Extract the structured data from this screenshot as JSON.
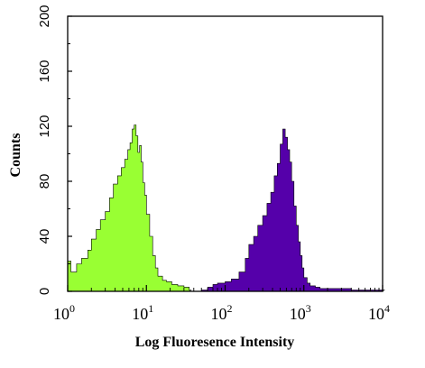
{
  "chart_data": {
    "type": "area",
    "title": "",
    "xlabel": "Log Fluoresence Intensity",
    "ylabel": "Counts",
    "xscale": "log",
    "xlim": [
      1,
      10000
    ],
    "ylim": [
      0,
      200
    ],
    "grid": false,
    "y_ticks": [
      0,
      40,
      80,
      120,
      160,
      200
    ],
    "x_ticks": [
      {
        "base": "10",
        "exp": "0",
        "value": 1
      },
      {
        "base": "10",
        "exp": "1",
        "value": 10
      },
      {
        "base": "10",
        "exp": "2",
        "value": 100
      },
      {
        "base": "10",
        "exp": "3",
        "value": 1000
      },
      {
        "base": "10",
        "exp": "4",
        "value": 10000
      }
    ],
    "series": [
      {
        "color": "#99ff33",
        "x": [
          1.0,
          1.1,
          1.3,
          1.5,
          1.8,
          2.0,
          2.3,
          2.6,
          3.0,
          3.4,
          3.8,
          4.3,
          4.8,
          5.3,
          5.8,
          6.2,
          6.6,
          7.0,
          7.4,
          7.8,
          8.2,
          8.6,
          9.0,
          9.5,
          10.0,
          11.0,
          12.0,
          13.0,
          14.0,
          16.0,
          18.0,
          21.0,
          25.0,
          30.0,
          35.0
        ],
        "y": [
          22,
          14,
          20,
          24,
          30,
          38,
          45,
          52,
          58,
          68,
          78,
          84,
          90,
          96,
          103,
          108,
          118,
          121,
          113,
          101,
          106,
          94,
          79,
          70,
          56,
          40,
          26,
          17,
          11,
          8,
          7,
          5,
          4,
          3,
          1
        ]
      },
      {
        "color": "#5500aa",
        "x": [
          50,
          60,
          70,
          80,
          100,
          120,
          150,
          180,
          200,
          230,
          260,
          300,
          340,
          380,
          420,
          460,
          500,
          540,
          580,
          620,
          660,
          700,
          750,
          800,
          850,
          900,
          950,
          1000,
          1100,
          1200,
          1400,
          1600,
          2000,
          2500,
          3000,
          4000,
          5000,
          6000,
          7000,
          8000,
          9000,
          10000
        ],
        "y": [
          1,
          3,
          5,
          6,
          7,
          9,
          14,
          24,
          34,
          40,
          48,
          55,
          64,
          72,
          84,
          93,
          107,
          118,
          112,
          103,
          94,
          80,
          62,
          48,
          36,
          26,
          17,
          10,
          6,
          4,
          3,
          2,
          2,
          2,
          2,
          1,
          1,
          1,
          1,
          1,
          1,
          1
        ]
      }
    ]
  }
}
